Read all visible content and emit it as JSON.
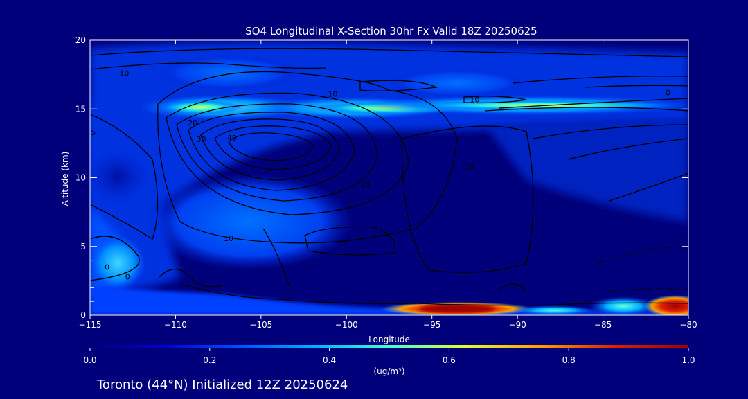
{
  "chart_data": {
    "type": "heatmap",
    "title": "SO4 Longitudinal X-Section 30hr  Fx Valid 18Z 20250625",
    "xlabel": "Longitude",
    "ylabel": "Altitude (km)",
    "xlim": [
      -115,
      -80
    ],
    "ylim": [
      0,
      20
    ],
    "x_ticks": [
      -115,
      -110,
      -105,
      -100,
      -95,
      -90,
      -85,
      -80
    ],
    "x_tick_labels": [
      "−115",
      "−110",
      "−105",
      "−100",
      "−95",
      "−90",
      "−85",
      "−80"
    ],
    "y_ticks": [
      0,
      5,
      10,
      15,
      20
    ],
    "y_tick_labels": [
      "0",
      "5",
      "10",
      "15",
      "20"
    ],
    "colorbar": {
      "min": 0.0,
      "max": 1.0,
      "ticks": [
        0.0,
        0.2,
        0.4,
        0.6,
        0.8,
        1.0
      ],
      "tick_labels": [
        "0.0",
        "0.2",
        "0.4",
        "0.6",
        "0.8",
        "1.0"
      ],
      "unit_label": "(ug/m³)",
      "colors": [
        "#00007a",
        "#0000d0",
        "#0050ff",
        "#00b0ff",
        "#40ffd0",
        "#e0ff30",
        "#ffa000",
        "#e02000",
        "#a00000"
      ]
    },
    "contour_labels": [
      {
        "text": "10",
        "x": -113.0,
        "y": 17.6
      },
      {
        "text": "10",
        "x": -100.8,
        "y": 16.1
      },
      {
        "text": "10",
        "x": -92.5,
        "y": 15.7
      },
      {
        "text": "0",
        "x": -81.2,
        "y": 16.2
      },
      {
        "text": "20",
        "x": -109.0,
        "y": 14.0
      },
      {
        "text": "30",
        "x": -108.5,
        "y": 12.8
      },
      {
        "text": "40",
        "x": -106.7,
        "y": 12.9
      },
      {
        "text": "20",
        "x": -98.9,
        "y": 9.5
      },
      {
        "text": "10",
        "x": -92.8,
        "y": 10.8
      },
      {
        "text": "10",
        "x": -106.9,
        "y": 5.6
      },
      {
        "text": "0",
        "x": -114.0,
        "y": 3.5
      },
      {
        "text": "0",
        "x": -112.8,
        "y": 2.8
      },
      {
        "text": "5",
        "x": -114.8,
        "y": 13.3
      }
    ],
    "contour_levels": [
      0,
      10,
      20,
      30,
      40
    ],
    "grid": false,
    "legend": "colorbar-bottom"
  },
  "footer": {
    "text": "Toronto (44°N) Initialized 12Z 20250624"
  }
}
